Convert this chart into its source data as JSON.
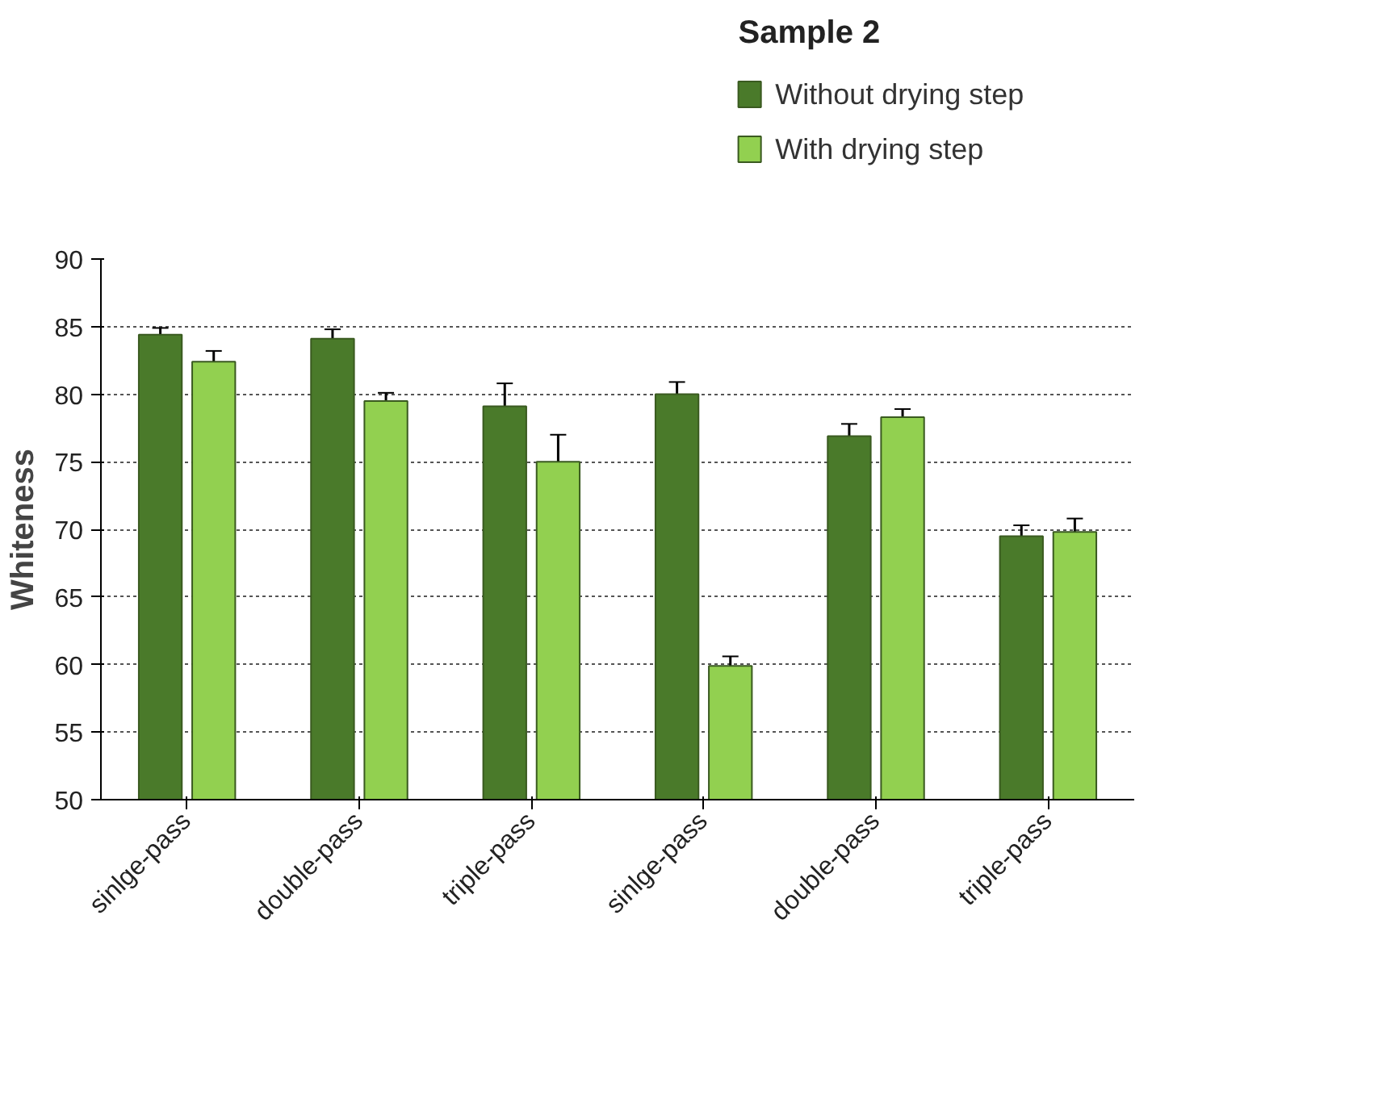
{
  "chart_data": {
    "type": "bar",
    "ylabel": "Whiteness",
    "legend_title": "Sample 2",
    "categories": [
      "sinlge-pass",
      "double-pass",
      "triple-pass",
      "sinlge-pass",
      "double-pass",
      "triple-pass"
    ],
    "series": [
      {
        "name": "Without drying step",
        "color": "#4a7a2a",
        "values": [
          84.4,
          84.1,
          79.1,
          80.0,
          76.9,
          69.5
        ],
        "errors": [
          0.5,
          0.7,
          1.7,
          0.9,
          0.9,
          0.8
        ]
      },
      {
        "name": "With drying step",
        "color": "#92d050",
        "values": [
          82.4,
          79.5,
          75.0,
          59.9,
          78.3,
          69.8
        ],
        "errors": [
          0.8,
          0.6,
          2.0,
          0.7,
          0.6,
          1.0
        ]
      }
    ],
    "ylim": [
      50,
      90
    ],
    "yticks": [
      50,
      55,
      60,
      65,
      70,
      75,
      80,
      85,
      90
    ],
    "grid": "y",
    "legend": "top right"
  }
}
